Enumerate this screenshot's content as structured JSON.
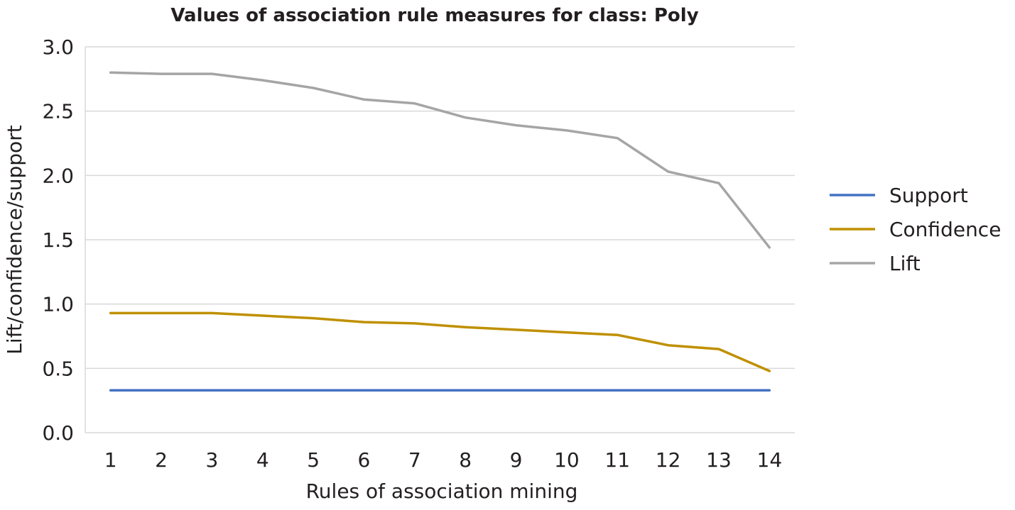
{
  "chart_data": {
    "type": "line",
    "title": "Values of association rule measures for class: Poly",
    "xlabel": "Rules of association mining",
    "ylabel": "Lift/confidence/support",
    "x": [
      "1",
      "2",
      "3",
      "4",
      "5",
      "6",
      "7",
      "8",
      "9",
      "10",
      "11",
      "12",
      "13",
      "14"
    ],
    "ylim": [
      0,
      3
    ],
    "yticks": [
      "0.0",
      "0.5",
      "1.0",
      "1.5",
      "2.0",
      "2.5",
      "3.0"
    ],
    "grid": true,
    "legend_position": "right",
    "series": [
      {
        "name": "Support",
        "color": "#4472c4",
        "values": [
          0.33,
          0.33,
          0.33,
          0.33,
          0.33,
          0.33,
          0.33,
          0.33,
          0.33,
          0.33,
          0.33,
          0.33,
          0.33,
          0.33
        ]
      },
      {
        "name": "Confidence",
        "color": "#bf9000",
        "values": [
          0.93,
          0.93,
          0.93,
          0.91,
          0.89,
          0.86,
          0.85,
          0.82,
          0.8,
          0.78,
          0.76,
          0.68,
          0.65,
          0.48
        ]
      },
      {
        "name": "Lift",
        "color": "#a5a5a5",
        "values": [
          2.8,
          2.79,
          2.79,
          2.74,
          2.68,
          2.59,
          2.56,
          2.45,
          2.39,
          2.35,
          2.29,
          2.03,
          1.94,
          1.44
        ]
      }
    ]
  }
}
